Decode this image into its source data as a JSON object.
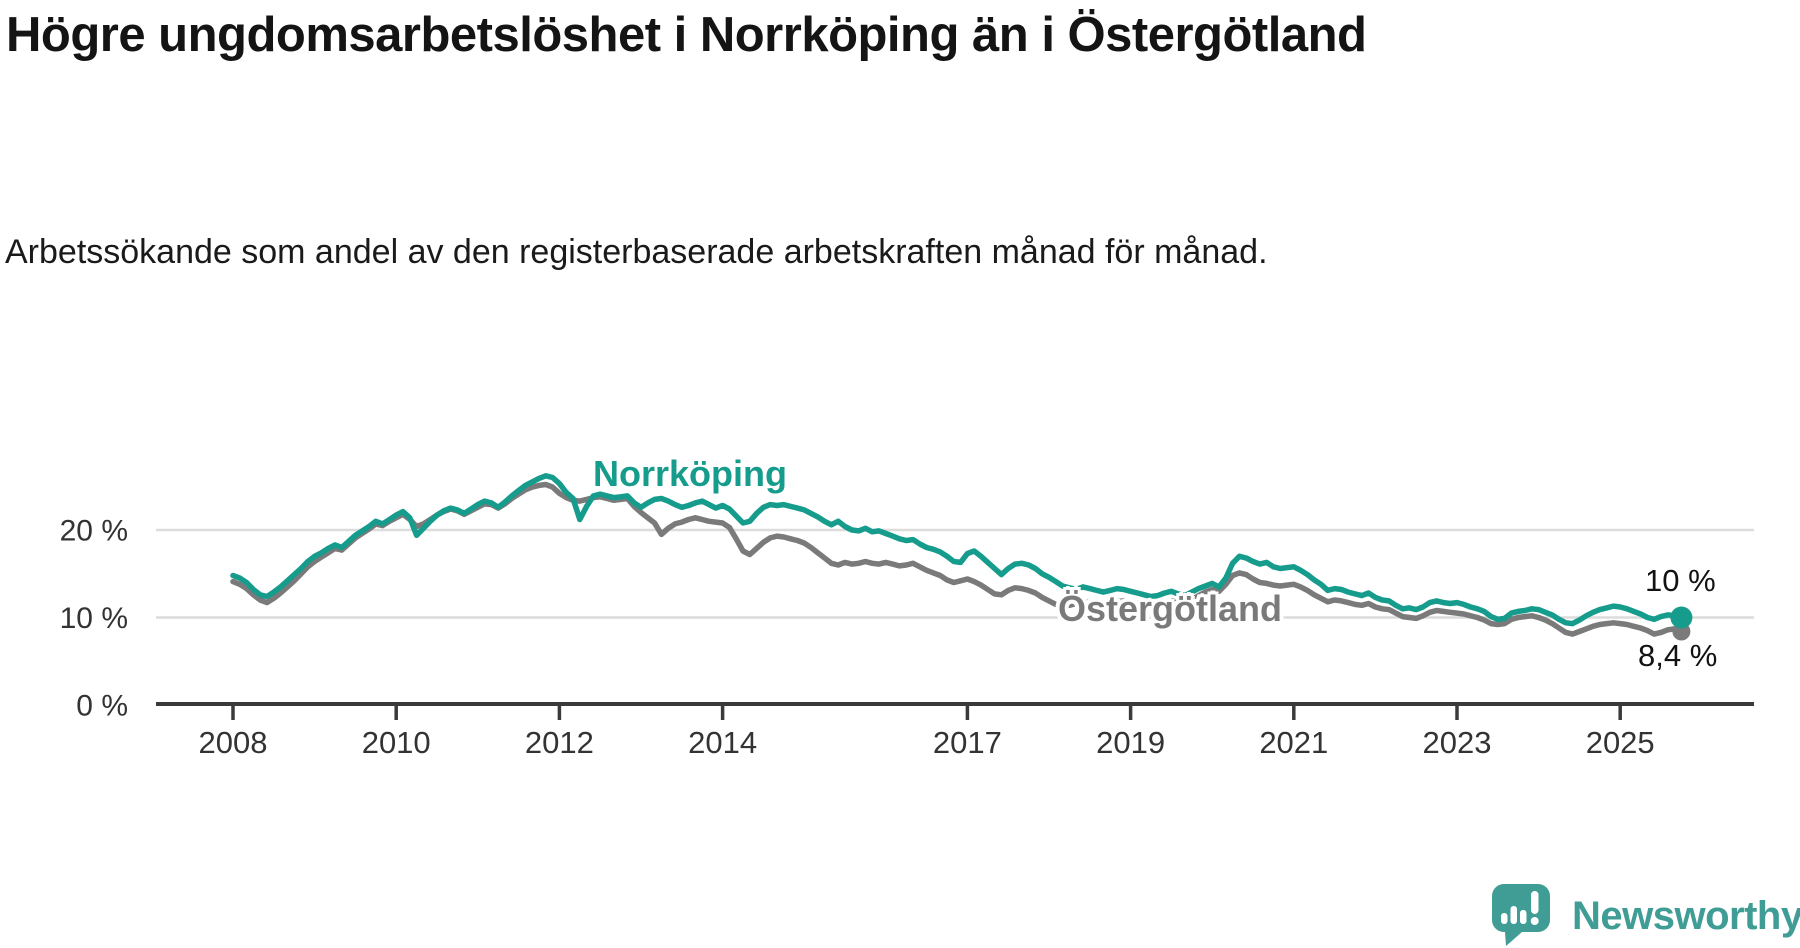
{
  "title": "Högre ungdomsarbetslöshet i Norrköping än i Östergötland",
  "subtitle": "Arbetssökande som andel av den registerbaserade arbetskraften månad för månad.",
  "branding": {
    "logo_text": "Newsworthy",
    "logo_icon": "newsworthy-speech-bubble-chart-icon"
  },
  "colors": {
    "norrkoping_line": "#169c8c",
    "ostergotland_line": "#7a7a7b",
    "gridline": "#dcdcdc",
    "axis": "#3a3a3a",
    "text": "#141414",
    "tick_text": "#333333",
    "logo_teal": "#3f9d95"
  },
  "chart_data": {
    "type": "line",
    "title": "Högre ungdomsarbetslöshet i Norrköping än i Östergötland",
    "subtitle": "Arbetssökande som andel av den registerbaserade arbetskraften månad för månad.",
    "x_start": {
      "year": 2008,
      "month": 1
    },
    "x_interval": "monthly",
    "x_end": {
      "year": 2025,
      "month": 10
    },
    "ylim": [
      0,
      27.5
    ],
    "grid": "horizontal",
    "y_ticks": [
      {
        "value": 0,
        "label": "0 %"
      },
      {
        "value": 10,
        "label": "10 %"
      },
      {
        "value": 20,
        "label": "20 %"
      }
    ],
    "x_ticks": [
      {
        "year": 2008,
        "label": "2008"
      },
      {
        "year": 2010,
        "label": "2010"
      },
      {
        "year": 2012,
        "label": "2012"
      },
      {
        "year": 2014,
        "label": "2014"
      },
      {
        "year": 2017,
        "label": "2017"
      },
      {
        "year": 2019,
        "label": "2019"
      },
      {
        "year": 2021,
        "label": "2021"
      },
      {
        "year": 2023,
        "label": "2023"
      },
      {
        "year": 2025,
        "label": "2025"
      }
    ],
    "series": [
      {
        "name": "Norrköping",
        "color": "#169c8c",
        "end_label": "10 %",
        "end_value": 10.0,
        "values": [
          14.8,
          14.5,
          14.0,
          13.2,
          12.6,
          12.4,
          12.9,
          13.5,
          14.2,
          14.9,
          15.6,
          16.4,
          17.0,
          17.4,
          17.9,
          18.3,
          18.0,
          18.7,
          19.4,
          19.9,
          20.4,
          21.0,
          20.7,
          21.2,
          21.7,
          22.1,
          21.4,
          19.4,
          20.2,
          21.0,
          21.7,
          22.2,
          22.5,
          22.3,
          21.9,
          22.4,
          22.9,
          23.3,
          23.1,
          22.6,
          23.2,
          23.9,
          24.5,
          25.1,
          25.5,
          25.9,
          26.2,
          26.0,
          25.3,
          24.3,
          23.6,
          21.2,
          22.7,
          23.9,
          24.1,
          23.9,
          23.7,
          23.8,
          23.9,
          23.1,
          22.6,
          23.1,
          23.5,
          23.6,
          23.3,
          22.9,
          22.6,
          22.8,
          23.1,
          23.3,
          22.9,
          22.5,
          22.8,
          22.4,
          21.6,
          20.8,
          21.0,
          21.9,
          22.6,
          22.9,
          22.8,
          22.9,
          22.7,
          22.5,
          22.3,
          21.9,
          21.5,
          21.0,
          20.6,
          21.0,
          20.4,
          20.0,
          19.9,
          20.2,
          19.8,
          19.9,
          19.6,
          19.3,
          19.0,
          18.8,
          18.9,
          18.4,
          18.0,
          17.8,
          17.5,
          17.0,
          16.4,
          16.3,
          17.3,
          17.6,
          17.0,
          16.3,
          15.6,
          14.9,
          15.6,
          16.1,
          16.2,
          16.0,
          15.6,
          15.0,
          14.6,
          14.1,
          13.6,
          13.4,
          13.2,
          13.5,
          13.3,
          13.1,
          12.9,
          13.1,
          13.3,
          13.2,
          13.0,
          12.8,
          12.6,
          12.4,
          12.5,
          12.8,
          13.0,
          12.7,
          12.5,
          12.9,
          13.3,
          13.6,
          13.9,
          13.5,
          14.5,
          16.2,
          17.0,
          16.8,
          16.4,
          16.1,
          16.3,
          15.8,
          15.6,
          15.7,
          15.8,
          15.4,
          14.9,
          14.3,
          13.8,
          13.1,
          13.3,
          13.2,
          12.9,
          12.7,
          12.5,
          12.8,
          12.3,
          12.0,
          11.9,
          11.4,
          11.0,
          11.1,
          10.9,
          11.2,
          11.7,
          11.9,
          11.7,
          11.6,
          11.7,
          11.5,
          11.2,
          11.0,
          10.7,
          10.1,
          9.8,
          9.9,
          10.5,
          10.7,
          10.8,
          11.0,
          10.9,
          10.6,
          10.3,
          9.8,
          9.4,
          9.3,
          9.7,
          10.2,
          10.6,
          10.9,
          11.1,
          11.3,
          11.2,
          11.0,
          10.7,
          10.4,
          10.0,
          9.8,
          10.1,
          10.3,
          10.2,
          10.0
        ]
      },
      {
        "name": "Östergötland",
        "color": "#7a7a7b",
        "end_label": "8,4 %",
        "end_value": 8.4,
        "values": [
          14.1,
          13.8,
          13.3,
          12.6,
          12.0,
          11.7,
          12.2,
          12.8,
          13.5,
          14.2,
          15.0,
          15.8,
          16.4,
          16.9,
          17.4,
          17.9,
          17.7,
          18.4,
          19.1,
          19.6,
          20.1,
          20.7,
          20.5,
          21.0,
          21.4,
          21.8,
          21.2,
          20.4,
          20.7,
          21.2,
          21.7,
          22.1,
          22.4,
          22.2,
          21.8,
          22.2,
          22.6,
          23.0,
          22.9,
          22.5,
          23.0,
          23.6,
          24.1,
          24.6,
          24.9,
          25.1,
          25.2,
          24.9,
          24.2,
          23.7,
          23.4,
          23.3,
          23.5,
          23.7,
          23.8,
          23.6,
          23.4,
          23.5,
          23.6,
          22.7,
          22.0,
          21.4,
          20.8,
          19.5,
          20.2,
          20.7,
          20.9,
          21.2,
          21.4,
          21.2,
          21.0,
          20.9,
          20.8,
          20.3,
          19.0,
          17.6,
          17.2,
          17.9,
          18.6,
          19.1,
          19.3,
          19.2,
          19.0,
          18.8,
          18.5,
          18.0,
          17.4,
          16.8,
          16.2,
          16.0,
          16.3,
          16.1,
          16.2,
          16.4,
          16.2,
          16.1,
          16.3,
          16.1,
          15.9,
          16.0,
          16.2,
          15.8,
          15.4,
          15.1,
          14.8,
          14.3,
          14.0,
          14.2,
          14.4,
          14.1,
          13.7,
          13.2,
          12.7,
          12.6,
          13.1,
          13.4,
          13.3,
          13.1,
          12.8,
          12.3,
          11.9,
          11.5,
          11.3,
          11.4,
          11.6,
          11.8,
          11.7,
          11.5,
          11.4,
          11.6,
          11.8,
          11.9,
          11.8,
          11.6,
          11.5,
          11.4,
          11.5,
          11.7,
          11.9,
          11.7,
          11.6,
          12.0,
          12.5,
          12.9,
          13.2,
          13.0,
          13.8,
          14.8,
          15.1,
          14.9,
          14.4,
          14.0,
          13.9,
          13.7,
          13.6,
          13.7,
          13.8,
          13.5,
          13.1,
          12.6,
          12.2,
          11.8,
          12.0,
          11.9,
          11.7,
          11.5,
          11.4,
          11.6,
          11.2,
          11.0,
          10.9,
          10.5,
          10.1,
          10.0,
          9.9,
          10.2,
          10.6,
          10.8,
          10.7,
          10.6,
          10.5,
          10.4,
          10.2,
          10.0,
          9.7,
          9.3,
          9.2,
          9.3,
          9.8,
          10.0,
          10.1,
          10.2,
          10.0,
          9.7,
          9.3,
          8.8,
          8.3,
          8.1,
          8.4,
          8.7,
          9.0,
          9.2,
          9.3,
          9.4,
          9.3,
          9.2,
          9.0,
          8.8,
          8.5,
          8.1,
          8.3,
          8.6,
          8.7,
          8.4
        ]
      }
    ]
  }
}
